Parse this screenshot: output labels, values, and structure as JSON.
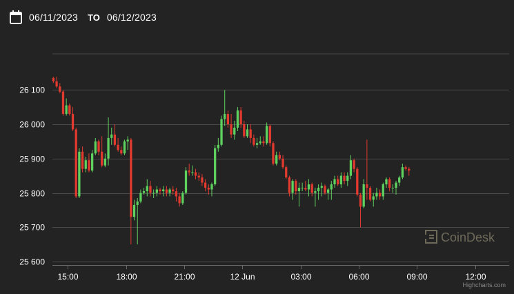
{
  "header": {
    "from_date": "06/11/2023",
    "to_label": "TO",
    "to_date": "06/12/2023",
    "calendar_icon": "calendar-icon"
  },
  "watermark": {
    "text": "CoinDesk",
    "icon": "coindesk-logo-icon"
  },
  "credits": {
    "text": "Highcharts.com"
  },
  "colors": {
    "background": "#232323",
    "grid": "#4a4a4a",
    "up": "#5fd15f",
    "down": "#e23a2e",
    "text": "#ffffff"
  },
  "chart_data": {
    "type": "candlestick",
    "y_ticks": [
      {
        "value": 26100,
        "label": "26 100"
      },
      {
        "value": 26000,
        "label": "26 000"
      },
      {
        "value": 25900,
        "label": "25 900"
      },
      {
        "value": 25800,
        "label": "25 800"
      },
      {
        "value": 25700,
        "label": "25 700"
      },
      {
        "value": 25600,
        "label": "25 600"
      }
    ],
    "ylim": [
      25590,
      26205
    ],
    "x_range_hours": [
      14.2,
      13.75
    ],
    "x_ticks": [
      {
        "hour": 15,
        "label": "15:00"
      },
      {
        "hour": 18,
        "label": "18:00"
      },
      {
        "hour": 21,
        "label": "21:00"
      },
      {
        "hour": 24,
        "label": "12 Jun"
      },
      {
        "hour": 27,
        "label": "03:00"
      },
      {
        "hour": 30,
        "label": "06:00"
      },
      {
        "hour": 33,
        "label": "09:00"
      },
      {
        "hour": 36,
        "label": "12:00"
      }
    ],
    "interval_minutes": 10,
    "start_hour": 14.25,
    "candles": [
      [
        26135,
        26138,
        26120,
        26125
      ],
      [
        26125,
        26138,
        26105,
        26110
      ],
      [
        26110,
        26120,
        26090,
        26095
      ],
      [
        26095,
        26100,
        26025,
        26030
      ],
      [
        26030,
        26075,
        26025,
        26055
      ],
      [
        26055,
        26060,
        26025,
        26030
      ],
      [
        26030,
        26050,
        25980,
        25985
      ],
      [
        25985,
        25990,
        25785,
        25790
      ],
      [
        25790,
        25930,
        25785,
        25920
      ],
      [
        25920,
        25935,
        25860,
        25870
      ],
      [
        25870,
        25905,
        25860,
        25895
      ],
      [
        25895,
        25915,
        25860,
        25865
      ],
      [
        25865,
        25925,
        25860,
        25915
      ],
      [
        25915,
        25960,
        25910,
        25950
      ],
      [
        25950,
        25955,
        25910,
        25920
      ],
      [
        25920,
        25965,
        25875,
        25880
      ],
      [
        25880,
        25915,
        25875,
        25900
      ],
      [
        25900,
        26020,
        25880,
        25960
      ],
      [
        25960,
        25990,
        25940,
        25970
      ],
      [
        25970,
        26000,
        25935,
        25940
      ],
      [
        25940,
        25960,
        25920,
        25925
      ],
      [
        25925,
        25935,
        25910,
        25915
      ],
      [
        25915,
        25955,
        25910,
        25950
      ],
      [
        25950,
        25965,
        25925,
        25955
      ],
      [
        25955,
        25960,
        25650,
        25730
      ],
      [
        25730,
        25780,
        25720,
        25765
      ],
      [
        25765,
        25785,
        25650,
        25775
      ],
      [
        25775,
        25810,
        25770,
        25800
      ],
      [
        25800,
        25815,
        25795,
        25805
      ],
      [
        25805,
        25840,
        25790,
        25820
      ],
      [
        25820,
        25835,
        25790,
        25800
      ],
      [
        25800,
        25810,
        25785,
        25800
      ],
      [
        25800,
        25820,
        25790,
        25810
      ],
      [
        25810,
        25815,
        25795,
        25805
      ],
      [
        25805,
        25820,
        25790,
        25810
      ],
      [
        25810,
        25820,
        25790,
        25800
      ],
      [
        25800,
        25815,
        25790,
        25810
      ],
      [
        25810,
        25820,
        25795,
        25805
      ],
      [
        25805,
        25815,
        25775,
        25790
      ],
      [
        25790,
        25800,
        25760,
        25770
      ],
      [
        25770,
        25805,
        25765,
        25800
      ],
      [
        25800,
        25875,
        25795,
        25865
      ],
      [
        25865,
        25885,
        25850,
        25860
      ],
      [
        25860,
        25880,
        25850,
        25860
      ],
      [
        25860,
        25870,
        25840,
        25850
      ],
      [
        25850,
        25860,
        25835,
        25845
      ],
      [
        25845,
        25855,
        25820,
        25830
      ],
      [
        25830,
        25840,
        25805,
        25815
      ],
      [
        25815,
        25825,
        25795,
        25810
      ],
      [
        25810,
        25830,
        25790,
        25825
      ],
      [
        25825,
        25940,
        25820,
        25930
      ],
      [
        25930,
        25960,
        25920,
        25940
      ],
      [
        25940,
        26025,
        25935,
        26015
      ],
      [
        26015,
        26100,
        25995,
        26030
      ],
      [
        26030,
        26040,
        25990,
        26000
      ],
      [
        26000,
        26030,
        25960,
        25970
      ],
      [
        25970,
        26010,
        25955,
        25990
      ],
      [
        25990,
        26050,
        25980,
        26040
      ],
      [
        26040,
        26050,
        25990,
        26000
      ],
      [
        26000,
        26010,
        25960,
        25965
      ],
      [
        25965,
        26000,
        25960,
        25985
      ],
      [
        25985,
        26000,
        25945,
        25960
      ],
      [
        25960,
        25970,
        25935,
        25940
      ],
      [
        25940,
        25960,
        25930,
        25945
      ],
      [
        25945,
        25965,
        25940,
        25950
      ],
      [
        25950,
        25965,
        25935,
        25945
      ],
      [
        25945,
        26005,
        25940,
        25995
      ],
      [
        25995,
        26000,
        25935,
        25945
      ],
      [
        25945,
        25950,
        25880,
        25885
      ],
      [
        25885,
        25920,
        25880,
        25910
      ],
      [
        25910,
        25920,
        25895,
        25900
      ],
      [
        25900,
        25910,
        25870,
        25875
      ],
      [
        25875,
        25880,
        25840,
        25845
      ],
      [
        25845,
        25850,
        25790,
        25800
      ],
      [
        25800,
        25840,
        25780,
        25835
      ],
      [
        25835,
        25840,
        25795,
        25805
      ],
      [
        25805,
        25830,
        25760,
        25815
      ],
      [
        25815,
        25830,
        25805,
        25815
      ],
      [
        25815,
        25835,
        25805,
        25810
      ],
      [
        25810,
        25840,
        25790,
        25825
      ],
      [
        25825,
        25830,
        25790,
        25800
      ],
      [
        25800,
        25815,
        25760,
        25805
      ],
      [
        25805,
        25825,
        25780,
        25815
      ],
      [
        25815,
        25830,
        25790,
        25820
      ],
      [
        25820,
        25825,
        25795,
        25800
      ],
      [
        25800,
        25815,
        25780,
        25810
      ],
      [
        25810,
        25835,
        25780,
        25825
      ],
      [
        25825,
        25850,
        25815,
        25840
      ],
      [
        25840,
        25850,
        25820,
        25825
      ],
      [
        25825,
        25860,
        25815,
        25850
      ],
      [
        25850,
        25860,
        25825,
        25835
      ],
      [
        25835,
        25860,
        25820,
        25850
      ],
      [
        25850,
        25910,
        25840,
        25895
      ],
      [
        25895,
        25900,
        25860,
        25870
      ],
      [
        25870,
        25875,
        25790,
        25795
      ],
      [
        25795,
        25800,
        25700,
        25760
      ],
      [
        25760,
        25840,
        25755,
        25825
      ],
      [
        25825,
        25955,
        25780,
        25815
      ],
      [
        25815,
        25820,
        25775,
        25780
      ],
      [
        25780,
        25800,
        25760,
        25790
      ],
      [
        25790,
        25815,
        25780,
        25800
      ],
      [
        25800,
        25810,
        25780,
        25790
      ],
      [
        25790,
        25830,
        25780,
        25825
      ],
      [
        25825,
        25845,
        25815,
        25840
      ],
      [
        25840,
        25845,
        25805,
        25815
      ],
      [
        25815,
        25825,
        25800,
        25815
      ],
      [
        25815,
        25835,
        25795,
        25830
      ],
      [
        25830,
        25850,
        25820,
        25845
      ],
      [
        25845,
        25885,
        25840,
        25875
      ],
      [
        25875,
        25880,
        25865,
        25870
      ],
      [
        25870,
        25875,
        25850,
        25865
      ]
    ]
  }
}
